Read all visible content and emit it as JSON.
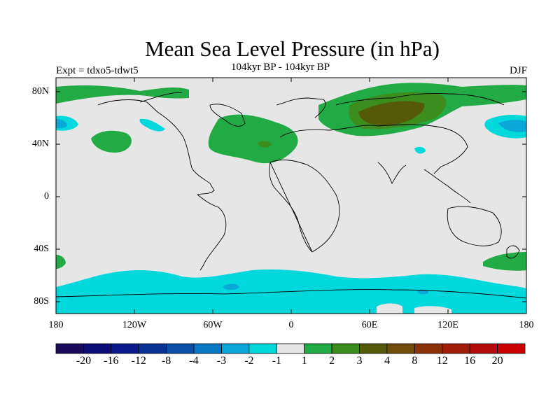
{
  "title": "Mean Sea Level Pressure (in hPa)",
  "subtitle_left": "Expt = tdxo5-tdwt5",
  "subtitle_center": "104kyr BP - 104kyr BP",
  "subtitle_right": "DJF",
  "y_ticks": [
    "80N",
    "40N",
    "0",
    "40S",
    "80S"
  ],
  "x_ticks": [
    "180",
    "120W",
    "60W",
    "0",
    "60E",
    "120E",
    "180"
  ],
  "colorbar": {
    "labels": [
      "-20",
      "-16",
      "-12",
      "-8",
      "-4",
      "-3",
      "-2",
      "-1",
      "1",
      "2",
      "3",
      "4",
      "8",
      "12",
      "16",
      "20"
    ],
    "colors": [
      "#1a0a5c",
      "#0d0d78",
      "#0a1a8c",
      "#0a3296",
      "#0a50a8",
      "#0a78c4",
      "#0aa8d8",
      "#00d8dc",
      "#e6e6e6",
      "#22aa44",
      "#3c8c1e",
      "#555a0a",
      "#6e4e0a",
      "#8c320a",
      "#a01e0a",
      "#b40a0a",
      "#cc0000"
    ]
  },
  "colors": {
    "background": "#e6e6e6",
    "positive_1_2": "#22aa44",
    "positive_2_3": "#3c8c1e",
    "positive_3_4": "#555a0a",
    "negative_2_1": "#00d8dc",
    "negative_3_2": "#0aa8d8"
  }
}
